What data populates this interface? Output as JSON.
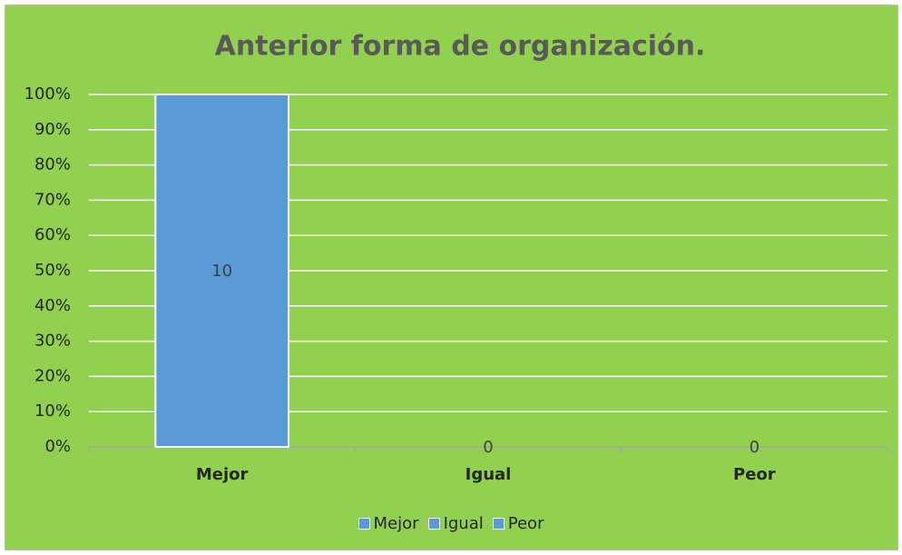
{
  "chart_data": {
    "type": "bar",
    "stacking": "percent",
    "title": "Anterior forma de organización.",
    "categories": [
      "Mejor",
      "Igual",
      "Peor"
    ],
    "series": [
      {
        "name": "Mejor",
        "color": "#5b9bd5",
        "values": [
          10,
          null,
          null
        ]
      },
      {
        "name": "Igual",
        "color": "#5b9bd5",
        "values": [
          null,
          0,
          null
        ]
      },
      {
        "name": "Peor",
        "color": "#5b9bd5",
        "values": [
          null,
          null,
          0
        ]
      }
    ],
    "ylim": [
      0,
      100
    ],
    "yticks": [
      {
        "value": 0,
        "label": "0%"
      },
      {
        "value": 10,
        "label": "10%"
      },
      {
        "value": 20,
        "label": "20%"
      },
      {
        "value": 30,
        "label": "30%"
      },
      {
        "value": 40,
        "label": "40%"
      },
      {
        "value": 50,
        "label": "50%"
      },
      {
        "value": 60,
        "label": "60%"
      },
      {
        "value": 70,
        "label": "70%"
      },
      {
        "value": 80,
        "label": "80%"
      },
      {
        "value": 90,
        "label": "90%"
      },
      {
        "value": 100,
        "label": "100%"
      }
    ],
    "grid": true,
    "legend": "bottom",
    "background": "#92d050"
  }
}
